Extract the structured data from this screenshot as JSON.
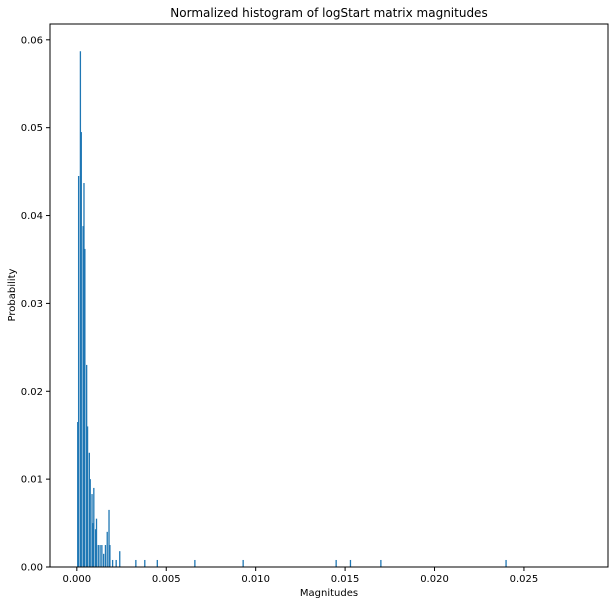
{
  "chart_data": {
    "type": "bar",
    "title": "Normalized histogram of logStart matrix magnitudes",
    "xlabel": "Magnitudes",
    "ylabel": "Probability",
    "xlim": [
      -0.0015,
      0.0297
    ],
    "ylim": [
      0,
      0.0618
    ],
    "bar_color": "#1f77b4",
    "grid": false,
    "x_ticks": [
      0.0,
      0.005,
      0.01,
      0.015,
      0.02,
      0.025
    ],
    "x_tick_labels": [
      "0.000",
      "0.005",
      "0.010",
      "0.015",
      "0.020",
      "0.025"
    ],
    "y_ticks": [
      0.0,
      0.01,
      0.02,
      0.03,
      0.04,
      0.05,
      0.06
    ],
    "y_tick_labels": [
      "0.00",
      "0.01",
      "0.02",
      "0.03",
      "0.04",
      "0.05",
      "0.06"
    ],
    "bins": [
      {
        "x": 5e-05,
        "y": 0.0165
      },
      {
        "x": 0.0001,
        "y": 0.0445
      },
      {
        "x": 0.0002,
        "y": 0.0587
      },
      {
        "x": 0.00025,
        "y": 0.0495
      },
      {
        "x": 0.00035,
        "y": 0.0388
      },
      {
        "x": 0.0004,
        "y": 0.0437
      },
      {
        "x": 0.00045,
        "y": 0.0362
      },
      {
        "x": 0.00055,
        "y": 0.023
      },
      {
        "x": 0.0006,
        "y": 0.016
      },
      {
        "x": 0.0007,
        "y": 0.013
      },
      {
        "x": 0.00075,
        "y": 0.01
      },
      {
        "x": 0.00085,
        "y": 0.0083
      },
      {
        "x": 0.0009,
        "y": 0.005
      },
      {
        "x": 0.00095,
        "y": 0.009
      },
      {
        "x": 0.00105,
        "y": 0.0043
      },
      {
        "x": 0.0011,
        "y": 0.0055
      },
      {
        "x": 0.0012,
        "y": 0.0025
      },
      {
        "x": 0.0013,
        "y": 0.0025
      },
      {
        "x": 0.0014,
        "y": 0.0025
      },
      {
        "x": 0.0015,
        "y": 0.0015
      },
      {
        "x": 0.0016,
        "y": 0.0025
      },
      {
        "x": 0.0017,
        "y": 0.004
      },
      {
        "x": 0.0018,
        "y": 0.0065
      },
      {
        "x": 0.00185,
        "y": 0.0025
      },
      {
        "x": 0.002,
        "y": 0.0008
      },
      {
        "x": 0.0022,
        "y": 0.0008
      },
      {
        "x": 0.0024,
        "y": 0.0018
      },
      {
        "x": 0.0033,
        "y": 0.0008
      },
      {
        "x": 0.0038,
        "y": 0.0008
      },
      {
        "x": 0.0045,
        "y": 0.0008
      },
      {
        "x": 0.0066,
        "y": 0.0008
      },
      {
        "x": 0.0093,
        "y": 0.0008
      },
      {
        "x": 0.0145,
        "y": 0.0008
      },
      {
        "x": 0.0153,
        "y": 0.0008
      },
      {
        "x": 0.017,
        "y": 0.0008
      },
      {
        "x": 0.024,
        "y": 0.0008
      }
    ]
  }
}
